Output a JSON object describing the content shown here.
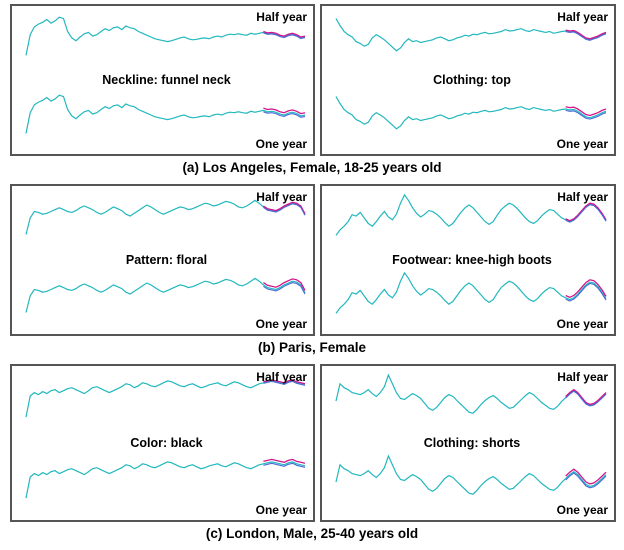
{
  "colors": {
    "series": "#22b8be",
    "forecast_a": "#d4148c",
    "forecast_b": "#4a6ad8",
    "border": "#555555"
  },
  "rows": [
    {
      "caption": "(a) Los Angeles, Female, 18-25 years old",
      "panels": [
        {
          "attribute": "Neckline: funnel neck",
          "top_label": "Half year",
          "bottom_label": "One year"
        },
        {
          "attribute": "Clothing: top",
          "top_label": "Half year",
          "bottom_label": "One year"
        }
      ]
    },
    {
      "caption": "(b) Paris, Female",
      "panels": [
        {
          "attribute": "Pattern: floral",
          "top_label": "Half year",
          "bottom_label": "One year"
        },
        {
          "attribute": "Footwear: knee-high boots",
          "top_label": "Half year",
          "bottom_label": "One year"
        }
      ]
    },
    {
      "caption": "(c) London, Male, 25-40 years old",
      "panels": [
        {
          "attribute": "Color: black",
          "top_label": "Half year",
          "bottom_label": "One year"
        },
        {
          "attribute": "Clothing: shorts",
          "top_label": "Half year",
          "bottom_label": "One year"
        }
      ]
    }
  ],
  "chart_data": [
    {
      "type": "line",
      "series": [
        {
          "values": [
            0.1,
            0.55,
            0.72,
            0.78,
            0.82,
            0.88,
            0.8,
            0.85,
            0.93,
            0.9,
            0.62,
            0.48,
            0.42,
            0.5,
            0.57,
            0.6,
            0.52,
            0.55,
            0.62,
            0.68,
            0.64,
            0.7,
            0.72,
            0.66,
            0.74,
            0.7,
            0.68,
            0.62,
            0.58,
            0.54,
            0.5,
            0.46,
            0.44,
            0.42,
            0.4,
            0.42,
            0.45,
            0.48,
            0.5,
            0.46,
            0.44,
            0.45,
            0.47,
            0.48,
            0.46,
            0.5,
            0.52,
            0.5,
            0.54,
            0.56,
            0.55,
            0.57,
            0.55,
            0.54,
            0.58,
            0.56,
            0.58,
            0.6,
            0.57,
            0.58,
            0.56,
            0.52,
            0.5,
            0.54,
            0.56,
            0.53,
            0.48,
            0.5
          ]
        }
      ]
    },
    {
      "type": "line",
      "series": [
        {
          "values": [
            0.9,
            0.75,
            0.62,
            0.55,
            0.5,
            0.4,
            0.36,
            0.3,
            0.34,
            0.48,
            0.55,
            0.5,
            0.44,
            0.36,
            0.28,
            0.2,
            0.26,
            0.38,
            0.46,
            0.4,
            0.42,
            0.38,
            0.4,
            0.42,
            0.44,
            0.48,
            0.5,
            0.46,
            0.42,
            0.44,
            0.48,
            0.5,
            0.54,
            0.52,
            0.56,
            0.55,
            0.58,
            0.6,
            0.57,
            0.58,
            0.6,
            0.62,
            0.66,
            0.63,
            0.64,
            0.66,
            0.68,
            0.64,
            0.62,
            0.66,
            0.64,
            0.62,
            0.6,
            0.62,
            0.58,
            0.6,
            0.62,
            0.63,
            0.61,
            0.62,
            0.58,
            0.52,
            0.46,
            0.44,
            0.47,
            0.5,
            0.55,
            0.58
          ]
        }
      ]
    },
    {
      "type": "line",
      "series": [
        {
          "values": [
            0.12,
            0.48,
            0.62,
            0.6,
            0.56,
            0.58,
            0.62,
            0.66,
            0.7,
            0.66,
            0.62,
            0.6,
            0.64,
            0.7,
            0.74,
            0.7,
            0.66,
            0.6,
            0.56,
            0.6,
            0.66,
            0.72,
            0.68,
            0.64,
            0.56,
            0.52,
            0.58,
            0.64,
            0.7,
            0.76,
            0.72,
            0.66,
            0.6,
            0.56,
            0.6,
            0.64,
            0.68,
            0.72,
            0.7,
            0.66,
            0.68,
            0.72,
            0.76,
            0.8,
            0.78,
            0.74,
            0.76,
            0.8,
            0.84,
            0.82,
            0.78,
            0.72,
            0.7,
            0.74,
            0.8,
            0.86,
            0.8,
            0.72,
            0.66,
            0.64,
            0.62,
            0.66,
            0.72,
            0.76,
            0.8,
            0.78,
            0.72,
            0.55
          ]
        }
      ]
    },
    {
      "type": "line",
      "series": [
        {
          "values": [
            0.1,
            0.22,
            0.3,
            0.4,
            0.55,
            0.52,
            0.6,
            0.48,
            0.36,
            0.3,
            0.4,
            0.52,
            0.62,
            0.5,
            0.44,
            0.56,
            0.8,
            0.98,
            0.86,
            0.7,
            0.58,
            0.5,
            0.56,
            0.64,
            0.62,
            0.56,
            0.48,
            0.38,
            0.3,
            0.36,
            0.48,
            0.6,
            0.7,
            0.76,
            0.7,
            0.6,
            0.5,
            0.4,
            0.34,
            0.4,
            0.54,
            0.66,
            0.74,
            0.8,
            0.76,
            0.68,
            0.58,
            0.48,
            0.4,
            0.36,
            0.42,
            0.52,
            0.6,
            0.66,
            0.64,
            0.56,
            0.48,
            0.44,
            0.4,
            0.44,
            0.52,
            0.62,
            0.72,
            0.78,
            0.76,
            0.68,
            0.56,
            0.42
          ]
        }
      ]
    },
    {
      "type": "line",
      "series": [
        {
          "values": [
            0.12,
            0.55,
            0.62,
            0.58,
            0.64,
            0.6,
            0.66,
            0.68,
            0.62,
            0.66,
            0.7,
            0.72,
            0.68,
            0.64,
            0.6,
            0.66,
            0.72,
            0.74,
            0.7,
            0.66,
            0.62,
            0.66,
            0.7,
            0.74,
            0.8,
            0.78,
            0.72,
            0.76,
            0.82,
            0.8,
            0.76,
            0.74,
            0.78,
            0.82,
            0.86,
            0.84,
            0.8,
            0.76,
            0.74,
            0.78,
            0.8,
            0.76,
            0.72,
            0.74,
            0.78,
            0.8,
            0.82,
            0.78,
            0.76,
            0.8,
            0.84,
            0.82,
            0.78,
            0.74,
            0.72,
            0.76,
            0.8,
            0.82,
            0.84,
            0.86,
            0.84,
            0.82,
            0.8,
            0.84,
            0.86,
            0.82,
            0.8,
            0.78
          ]
        }
      ]
    },
    {
      "type": "line",
      "series": [
        {
          "values": [
            0.45,
            0.8,
            0.72,
            0.68,
            0.62,
            0.6,
            0.58,
            0.62,
            0.68,
            0.6,
            0.54,
            0.62,
            0.74,
            0.98,
            0.8,
            0.62,
            0.5,
            0.48,
            0.54,
            0.6,
            0.56,
            0.5,
            0.4,
            0.3,
            0.26,
            0.32,
            0.42,
            0.52,
            0.58,
            0.54,
            0.46,
            0.38,
            0.3,
            0.22,
            0.2,
            0.28,
            0.38,
            0.46,
            0.52,
            0.56,
            0.5,
            0.42,
            0.36,
            0.3,
            0.32,
            0.4,
            0.48,
            0.56,
            0.62,
            0.58,
            0.5,
            0.42,
            0.36,
            0.3,
            0.28,
            0.34,
            0.44,
            0.52,
            0.6,
            0.66,
            0.6,
            0.5,
            0.4,
            0.36,
            0.38,
            0.44,
            0.52,
            0.6
          ]
        }
      ]
    }
  ]
}
